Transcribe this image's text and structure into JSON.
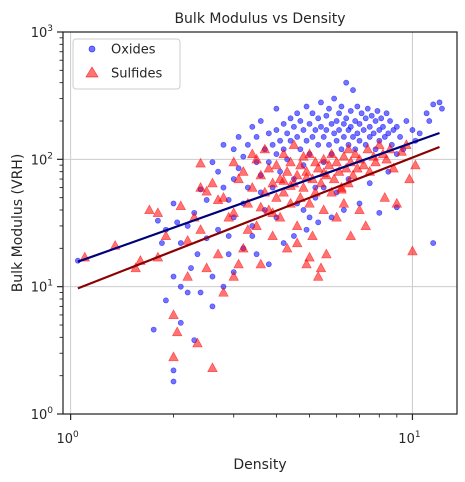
{
  "chart_data": {
    "type": "scatter",
    "title": "Bulk Modulus vs Density",
    "xlabel": "Density",
    "ylabel": "Bulk Modulus (VRH)",
    "xscale": "log",
    "yscale": "log",
    "xlim": [
      0.95,
      13.5
    ],
    "ylim": [
      1,
      1000
    ],
    "x_ticks": [
      {
        "value": 1,
        "base": "10",
        "exp": "0"
      },
      {
        "value": 10,
        "base": "10",
        "exp": "1"
      }
    ],
    "y_ticks": [
      {
        "value": 1,
        "base": "10",
        "exp": "0"
      },
      {
        "value": 10,
        "base": "10",
        "exp": "1"
      },
      {
        "value": 100,
        "base": "10",
        "exp": "2"
      },
      {
        "value": 1000,
        "base": "10",
        "exp": "3"
      }
    ],
    "grid": true,
    "legend_position": "top-left",
    "series": [
      {
        "name": "Oxides",
        "marker": "circle",
        "color": "#0000ff",
        "points": [
          [
            1.05,
            16
          ],
          [
            1.75,
            4.6
          ],
          [
            1.9,
            7.8
          ],
          [
            2.0,
            1.8
          ],
          [
            2.0,
            2.2
          ],
          [
            2.1,
            5.2
          ],
          [
            2.3,
            3.8
          ],
          [
            2.1,
            10
          ],
          [
            2.2,
            9
          ],
          [
            2.0,
            12
          ],
          [
            1.8,
            33
          ],
          [
            1.85,
            22
          ],
          [
            1.9,
            28
          ],
          [
            2.0,
            45
          ],
          [
            2.05,
            32
          ],
          [
            2.1,
            22
          ],
          [
            2.2,
            30
          ],
          [
            2.25,
            14
          ],
          [
            2.3,
            38
          ],
          [
            2.35,
            18
          ],
          [
            2.4,
            58
          ],
          [
            2.5,
            48
          ],
          [
            2.5,
            24
          ],
          [
            2.6,
            95
          ],
          [
            2.6,
            12
          ],
          [
            2.7,
            80
          ],
          [
            2.7,
            28
          ],
          [
            2.8,
            130
          ],
          [
            2.8,
            60
          ],
          [
            2.9,
            18
          ],
          [
            2.9,
            48
          ],
          [
            3.0,
            120
          ],
          [
            3.0,
            35
          ],
          [
            3.0,
            70
          ],
          [
            3.1,
            150
          ],
          [
            3.1,
            85
          ],
          [
            3.2,
            105
          ],
          [
            3.2,
            45
          ],
          [
            3.3,
            60
          ],
          [
            3.3,
            130
          ],
          [
            3.4,
            180
          ],
          [
            3.4,
            25
          ],
          [
            3.5,
            95
          ],
          [
            3.5,
            150
          ],
          [
            3.6,
            75
          ],
          [
            3.6,
            200
          ],
          [
            3.7,
            120
          ],
          [
            3.7,
            40
          ],
          [
            3.8,
            160
          ],
          [
            3.8,
            95
          ],
          [
            3.9,
            130
          ],
          [
            3.9,
            60
          ],
          [
            4.0,
            170
          ],
          [
            4.0,
            110
          ],
          [
            4.0,
            250
          ],
          [
            4.1,
            140
          ],
          [
            4.1,
            80
          ],
          [
            4.2,
            190
          ],
          [
            4.2,
            120
          ],
          [
            4.3,
            160
          ],
          [
            4.3,
            100
          ],
          [
            4.4,
            210
          ],
          [
            4.4,
            140
          ],
          [
            4.5,
            180
          ],
          [
            4.5,
            70
          ],
          [
            4.6,
            230
          ],
          [
            4.6,
            150
          ],
          [
            4.7,
            120
          ],
          [
            4.7,
            200
          ],
          [
            4.8,
            170
          ],
          [
            4.8,
            90
          ],
          [
            4.9,
            260
          ],
          [
            4.9,
            140
          ],
          [
            5.0,
            190
          ],
          [
            5.0,
            110
          ],
          [
            5.1,
            230
          ],
          [
            5.1,
            150
          ],
          [
            5.2,
            170
          ],
          [
            5.2,
            60
          ],
          [
            5.3,
            210
          ],
          [
            5.3,
            130
          ],
          [
            5.4,
            280
          ],
          [
            5.4,
            180
          ],
          [
            5.5,
            150
          ],
          [
            5.5,
            95
          ],
          [
            5.6,
            220
          ],
          [
            5.6,
            170
          ],
          [
            5.7,
            130
          ],
          [
            5.7,
            250
          ],
          [
            5.8,
            190
          ],
          [
            5.8,
            110
          ],
          [
            5.9,
            160
          ],
          [
            5.9,
            300
          ],
          [
            6.0,
            200
          ],
          [
            6.0,
            140
          ],
          [
            6.1,
            230
          ],
          [
            6.1,
            170
          ],
          [
            6.2,
            120
          ],
          [
            6.2,
            260
          ],
          [
            6.3,
            190
          ],
          [
            6.3,
            150
          ],
          [
            6.4,
            400
          ],
          [
            6.4,
            210
          ],
          [
            6.5,
            170
          ],
          [
            6.5,
            130
          ],
          [
            6.6,
            240
          ],
          [
            6.6,
            180
          ],
          [
            6.7,
            150
          ],
          [
            6.7,
            350
          ],
          [
            6.8,
            200
          ],
          [
            6.8,
            120
          ],
          [
            6.9,
            160
          ],
          [
            6.9,
            260
          ],
          [
            7.0,
            190
          ],
          [
            7.0,
            140
          ],
          [
            7.1,
            230
          ],
          [
            7.2,
            170
          ],
          [
            7.3,
            210
          ],
          [
            7.3,
            130
          ],
          [
            7.4,
            250
          ],
          [
            7.5,
            180
          ],
          [
            7.5,
            150
          ],
          [
            7.6,
            220
          ],
          [
            7.7,
            160
          ],
          [
            7.8,
            200
          ],
          [
            7.8,
            120
          ],
          [
            7.9,
            240
          ],
          [
            8.0,
            170
          ],
          [
            8.0,
            140
          ],
          [
            8.1,
            210
          ],
          [
            8.2,
            180
          ],
          [
            8.3,
            150
          ],
          [
            8.4,
            230
          ],
          [
            8.5,
            160
          ],
          [
            8.6,
            200
          ],
          [
            8.7,
            130
          ],
          [
            8.8,
            170
          ],
          [
            9.0,
            180
          ],
          [
            9.2,
            150
          ],
          [
            9.4,
            120
          ],
          [
            9.6,
            200
          ],
          [
            10.0,
            170
          ],
          [
            10.5,
            160
          ],
          [
            11.0,
            230
          ],
          [
            11.5,
            270
          ],
          [
            12.0,
            280
          ],
          [
            12.2,
            250
          ],
          [
            11.2,
            200
          ],
          [
            10.2,
            140
          ],
          [
            9.0,
            110
          ],
          [
            3.2,
            20
          ],
          [
            3.5,
            18
          ],
          [
            3.8,
            15
          ],
          [
            4.2,
            22
          ],
          [
            4.5,
            25
          ],
          [
            4.9,
            28
          ],
          [
            5.3,
            32
          ],
          [
            5.8,
            35
          ],
          [
            6.3,
            40
          ],
          [
            7.0,
            45
          ],
          [
            8.0,
            38
          ],
          [
            9.0,
            42
          ],
          [
            11.5,
            22
          ],
          [
            4.0,
            35
          ],
          [
            4.6,
            45
          ],
          [
            5.2,
            50
          ],
          [
            3.0,
            13
          ],
          [
            2.6,
            7
          ],
          [
            2.4,
            9
          ],
          [
            2.8,
            10
          ],
          [
            3.6,
            55
          ],
          [
            4.8,
            40
          ],
          [
            5.5,
            60
          ],
          [
            6.5,
            70
          ],
          [
            7.5,
            65
          ],
          [
            8.5,
            80
          ],
          [
            6.0,
            55
          ],
          [
            5.0,
            35
          ],
          [
            3.4,
            30
          ],
          [
            2.9,
            25
          ]
        ]
      },
      {
        "name": "Sulfides",
        "marker": "triangle",
        "color": "#ff0000",
        "points": [
          [
            1.1,
            17
          ],
          [
            1.35,
            21
          ],
          [
            1.55,
            14
          ],
          [
            1.6,
            16
          ],
          [
            1.7,
            40
          ],
          [
            1.8,
            38
          ],
          [
            1.8,
            17
          ],
          [
            1.9,
            25
          ],
          [
            2.0,
            2.8
          ],
          [
            2.0,
            6
          ],
          [
            2.05,
            4.4
          ],
          [
            2.1,
            43
          ],
          [
            2.2,
            12
          ],
          [
            2.2,
            23
          ],
          [
            2.3,
            35
          ],
          [
            2.35,
            3.6
          ],
          [
            2.4,
            60
          ],
          [
            2.4,
            28
          ],
          [
            2.4,
            93
          ],
          [
            2.5,
            14
          ],
          [
            2.6,
            2.3
          ],
          [
            2.6,
            65
          ],
          [
            2.7,
            18
          ],
          [
            2.8,
            50
          ],
          [
            2.8,
            9
          ],
          [
            2.9,
            35
          ],
          [
            3.0,
            95
          ],
          [
            3.0,
            12
          ],
          [
            3.1,
            70
          ],
          [
            3.2,
            80
          ],
          [
            3.2,
            20
          ],
          [
            3.3,
            45
          ],
          [
            3.4,
            110
          ],
          [
            3.4,
            60
          ],
          [
            3.5,
            30
          ],
          [
            3.5,
            100
          ],
          [
            3.6,
            75
          ],
          [
            3.6,
            15
          ],
          [
            3.7,
            55
          ],
          [
            3.7,
            120
          ],
          [
            3.8,
            40
          ],
          [
            3.8,
            85
          ],
          [
            3.9,
            65
          ],
          [
            3.9,
            25
          ],
          [
            4.0,
            90
          ],
          [
            4.0,
            50
          ],
          [
            4.1,
            70
          ],
          [
            4.1,
            35
          ],
          [
            4.2,
            110
          ],
          [
            4.2,
            55
          ],
          [
            4.3,
            80
          ],
          [
            4.3,
            20
          ],
          [
            4.4,
            95
          ],
          [
            4.4,
            45
          ],
          [
            4.5,
            65
          ],
          [
            4.5,
            130
          ],
          [
            4.6,
            75
          ],
          [
            4.6,
            30
          ],
          [
            4.7,
            90
          ],
          [
            4.7,
            50
          ],
          [
            4.8,
            105
          ],
          [
            4.8,
            60
          ],
          [
            4.9,
            15
          ],
          [
            4.9,
            80
          ],
          [
            5.0,
            110
          ],
          [
            5.0,
            45
          ],
          [
            5.1,
            70
          ],
          [
            5.1,
            25
          ],
          [
            5.2,
            95
          ],
          [
            5.2,
            55
          ],
          [
            5.3,
            12
          ],
          [
            5.3,
            85
          ],
          [
            5.4,
            65
          ],
          [
            5.5,
            100
          ],
          [
            5.5,
            40
          ],
          [
            5.6,
            75
          ],
          [
            5.6,
            18
          ],
          [
            5.7,
            90
          ],
          [
            5.8,
            55
          ],
          [
            5.8,
            110
          ],
          [
            5.9,
            70
          ],
          [
            6.0,
            95
          ],
          [
            6.0,
            35
          ],
          [
            6.1,
            80
          ],
          [
            6.2,
            60
          ],
          [
            6.3,
            105
          ],
          [
            6.3,
            45
          ],
          [
            6.4,
            85
          ],
          [
            6.5,
            120
          ],
          [
            6.5,
            65
          ],
          [
            6.6,
            95
          ],
          [
            6.7,
            75
          ],
          [
            6.8,
            110
          ],
          [
            6.9,
            85
          ],
          [
            7.0,
            100
          ],
          [
            7.0,
            40
          ],
          [
            7.2,
            90
          ],
          [
            7.4,
            120
          ],
          [
            7.5,
            80
          ],
          [
            7.7,
            105
          ],
          [
            7.8,
            95
          ],
          [
            8.0,
            130
          ],
          [
            8.2,
            110
          ],
          [
            8.4,
            100
          ],
          [
            8.6,
            120
          ],
          [
            8.8,
            85
          ],
          [
            9.0,
            45
          ],
          [
            9.3,
            115
          ],
          [
            9.6,
            130
          ],
          [
            10.0,
            19
          ],
          [
            10.2,
            90
          ],
          [
            9.8,
            70
          ],
          [
            3.0,
            38
          ],
          [
            3.3,
            28
          ],
          [
            3.6,
            42
          ],
          [
            4.4,
            62
          ],
          [
            4.2,
            68
          ],
          [
            4.9,
            72
          ],
          [
            5.5,
            78
          ],
          [
            6.2,
            58
          ],
          [
            2.7,
            48
          ],
          [
            2.5,
            56
          ],
          [
            3.9,
            38
          ],
          [
            4.6,
            22
          ],
          [
            5.0,
            17
          ],
          [
            5.4,
            14
          ],
          [
            6.6,
            25
          ],
          [
            7.3,
            30
          ],
          [
            8.3,
            50
          ],
          [
            3.1,
            15
          ]
        ]
      }
    ],
    "fit_lines": [
      {
        "series": "Oxides",
        "color": "#00007a",
        "points": [
          [
            1.05,
            15.7
          ],
          [
            12.0,
            161
          ]
        ]
      },
      {
        "series": "Sulfides",
        "color": "#8b0000",
        "points": [
          [
            1.05,
            9.7
          ],
          [
            12.0,
            125
          ]
        ]
      }
    ]
  }
}
